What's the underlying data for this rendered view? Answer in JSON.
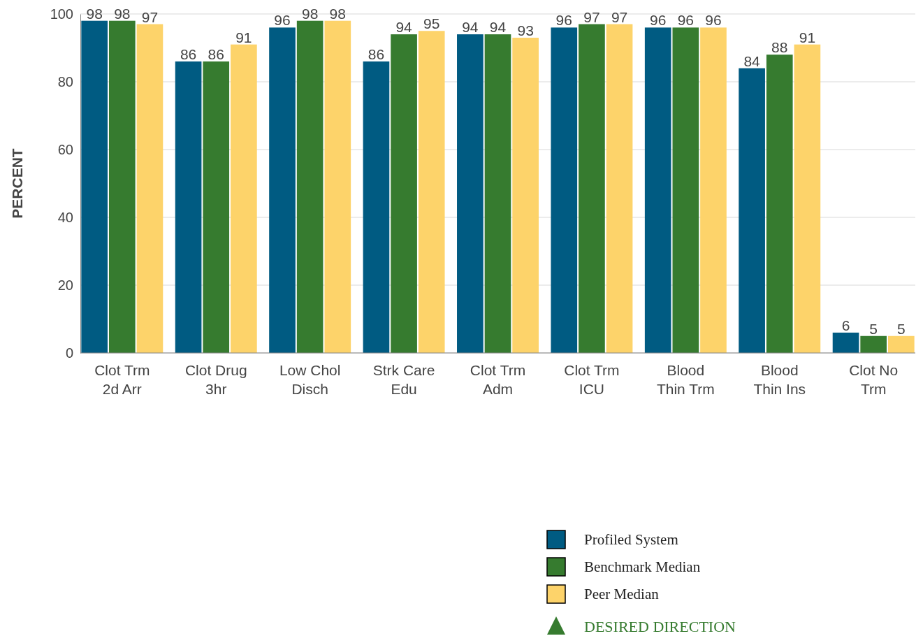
{
  "chart_data": {
    "type": "bar",
    "ylabel": "PERCENT",
    "categories": [
      "Clot Trm\n2d Arr",
      "Clot Drug\n3hr",
      "Low Chol\nDisch",
      "Strk Care\nEdu",
      "Clot Trm\nAdm",
      "Clot Trm\nICU",
      "Blood\nThin Trm",
      "Blood\nThin Ins",
      "Clot No\nTrm"
    ],
    "series": [
      {
        "name": "Profiled System",
        "color": "#005b82",
        "values": [
          98,
          86,
          96,
          86,
          94,
          96,
          96,
          84,
          6
        ]
      },
      {
        "name": "Benchmark Median",
        "color": "#367b2f",
        "values": [
          98,
          86,
          98,
          94,
          94,
          97,
          96,
          88,
          5
        ]
      },
      {
        "name": "Peer Median",
        "color": "#fdd36a",
        "values": [
          97,
          91,
          98,
          95,
          93,
          97,
          96,
          91,
          5
        ]
      }
    ],
    "ylim": [
      0,
      100
    ],
    "yticks": [
      0,
      20,
      40,
      60,
      80,
      100
    ],
    "grid": "y",
    "data_labels": true,
    "legend": "bottom right",
    "annotations": [
      "DESIRED DIRECTION"
    ]
  }
}
